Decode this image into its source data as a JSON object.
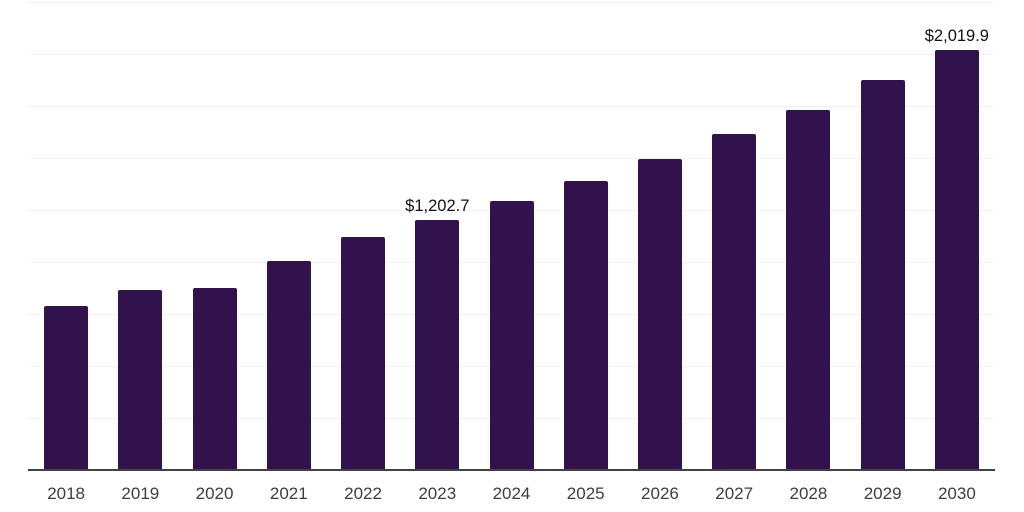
{
  "chart_data": {
    "type": "bar",
    "categories": [
      "2018",
      "2019",
      "2020",
      "2021",
      "2022",
      "2023",
      "2024",
      "2025",
      "2026",
      "2027",
      "2028",
      "2029",
      "2030"
    ],
    "values": [
      787,
      867,
      875,
      1007,
      1122,
      1202.7,
      1292,
      1390,
      1494,
      1613,
      1733,
      1873,
      2019.9
    ],
    "data_labels": {
      "2023": "$1,202.7",
      "2030": "$2,019.9"
    },
    "ylim": [
      0,
      2250
    ],
    "gridline_step": 250,
    "grid": true,
    "legend": false,
    "colors": {
      "bar": "#32124d",
      "axis_line": "#424242",
      "gridline": "#f1f1f1",
      "value_label": "#111111",
      "tick_label": "#3e3e3e",
      "background": "#ffffff"
    }
  }
}
